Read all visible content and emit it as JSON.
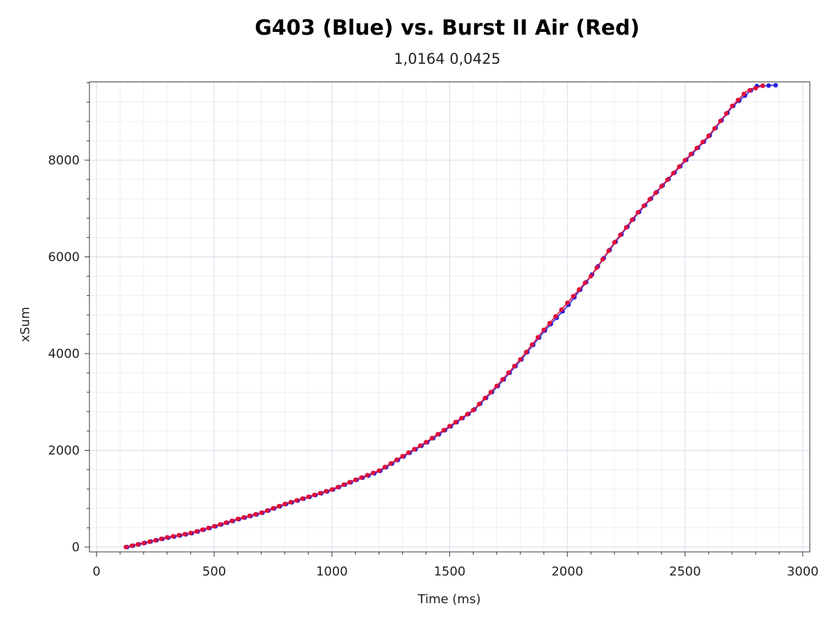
{
  "chart_data": {
    "type": "scatter",
    "title": "G403 (Blue) vs. Burst II Air (Red)",
    "subtitle": "1,0164 0,0425",
    "xlabel": "Time (ms)",
    "ylabel": "xSum",
    "xlim": [
      -30,
      3030
    ],
    "ylim": [
      -100,
      9620
    ],
    "xticks": [
      0,
      500,
      1000,
      1500,
      2000,
      2500,
      3000
    ],
    "xtick_labels": [
      "0",
      "500",
      "1000",
      "1500",
      "2000",
      "2500",
      "3000"
    ],
    "yticks": [
      0,
      2000,
      4000,
      6000,
      8000
    ],
    "ytick_labels": [
      "0",
      "2000",
      "4000",
      "6000",
      "8000"
    ],
    "grid": true,
    "colors": {
      "blue": "#1f1fe0",
      "red": "#e0103a",
      "grid_major": "#d9dbe8",
      "grid_minor": "#eceef5"
    },
    "series": [
      {
        "color": "#1f1fe0",
        "x": [
          130,
          200,
          300,
          400,
          500,
          600,
          700,
          800,
          900,
          1000,
          1100,
          1200,
          1300,
          1400,
          1500,
          1600,
          1700,
          1800,
          1900,
          2000,
          2100,
          2200,
          2300,
          2400,
          2500,
          2600,
          2700,
          2800,
          2885
        ],
        "y": [
          0,
          80,
          190,
          280,
          420,
          570,
          700,
          880,
          1030,
          1180,
          1380,
          1560,
          1860,
          2150,
          2480,
          2820,
          3300,
          3850,
          4450,
          4980,
          5600,
          6280,
          6900,
          7450,
          7980,
          8480,
          9100,
          9530,
          9550
        ]
      },
      {
        "color": "#e0103a",
        "x": [
          125,
          200,
          300,
          400,
          500,
          600,
          700,
          800,
          900,
          1000,
          1100,
          1200,
          1300,
          1400,
          1500,
          1600,
          1700,
          1800,
          1900,
          2000,
          2100,
          2200,
          2300,
          2400,
          2500,
          2600,
          2700,
          2760,
          2830
        ],
        "y": [
          0,
          80,
          200,
          290,
          430,
          580,
          710,
          890,
          1040,
          1190,
          1390,
          1580,
          1880,
          2170,
          2500,
          2830,
          3330,
          3880,
          4490,
          5050,
          5600,
          6300,
          6920,
          7460,
          8000,
          8500,
          9120,
          9420,
          9540
        ]
      }
    ]
  }
}
